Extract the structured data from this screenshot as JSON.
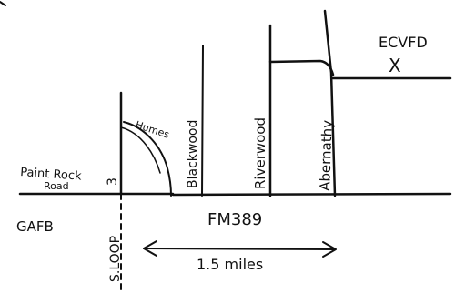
{
  "roads": {
    "main_road": "FM389",
    "south_loop": "S.LOOP",
    "paint_rock": [
      "Paint Rock",
      "Road"
    ],
    "humes": "Humes",
    "blackwood": "Blackwood",
    "riverwood": "Riverwood",
    "abernathy": "Abernathy"
  },
  "places": {
    "gafb": "GAFB",
    "ecvfd": "ECVFD",
    "ecvfd_marker": "X",
    "route_number": "3"
  },
  "distance": {
    "label": "1.5 miles"
  }
}
